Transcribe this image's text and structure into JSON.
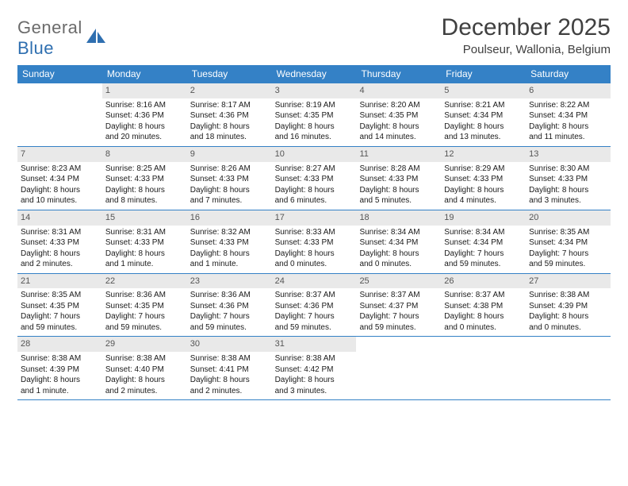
{
  "logo": {
    "text1": "General",
    "text2": "Blue"
  },
  "title": "December 2025",
  "location": "Poulseur, Wallonia, Belgium",
  "colors": {
    "header_bar": "#3481c6",
    "daynum_bg": "#e9e9e9",
    "text": "#1a1a1a",
    "logo_gray": "#6b6b6b",
    "logo_blue": "#2f6fb0"
  },
  "weekdays": [
    "Sunday",
    "Monday",
    "Tuesday",
    "Wednesday",
    "Thursday",
    "Friday",
    "Saturday"
  ],
  "weeks": [
    [
      null,
      {
        "n": "1",
        "sr": "Sunrise: 8:16 AM",
        "ss": "Sunset: 4:36 PM",
        "d1": "Daylight: 8 hours",
        "d2": "and 20 minutes."
      },
      {
        "n": "2",
        "sr": "Sunrise: 8:17 AM",
        "ss": "Sunset: 4:36 PM",
        "d1": "Daylight: 8 hours",
        "d2": "and 18 minutes."
      },
      {
        "n": "3",
        "sr": "Sunrise: 8:19 AM",
        "ss": "Sunset: 4:35 PM",
        "d1": "Daylight: 8 hours",
        "d2": "and 16 minutes."
      },
      {
        "n": "4",
        "sr": "Sunrise: 8:20 AM",
        "ss": "Sunset: 4:35 PM",
        "d1": "Daylight: 8 hours",
        "d2": "and 14 minutes."
      },
      {
        "n": "5",
        "sr": "Sunrise: 8:21 AM",
        "ss": "Sunset: 4:34 PM",
        "d1": "Daylight: 8 hours",
        "d2": "and 13 minutes."
      },
      {
        "n": "6",
        "sr": "Sunrise: 8:22 AM",
        "ss": "Sunset: 4:34 PM",
        "d1": "Daylight: 8 hours",
        "d2": "and 11 minutes."
      }
    ],
    [
      {
        "n": "7",
        "sr": "Sunrise: 8:23 AM",
        "ss": "Sunset: 4:34 PM",
        "d1": "Daylight: 8 hours",
        "d2": "and 10 minutes."
      },
      {
        "n": "8",
        "sr": "Sunrise: 8:25 AM",
        "ss": "Sunset: 4:33 PM",
        "d1": "Daylight: 8 hours",
        "d2": "and 8 minutes."
      },
      {
        "n": "9",
        "sr": "Sunrise: 8:26 AM",
        "ss": "Sunset: 4:33 PM",
        "d1": "Daylight: 8 hours",
        "d2": "and 7 minutes."
      },
      {
        "n": "10",
        "sr": "Sunrise: 8:27 AM",
        "ss": "Sunset: 4:33 PM",
        "d1": "Daylight: 8 hours",
        "d2": "and 6 minutes."
      },
      {
        "n": "11",
        "sr": "Sunrise: 8:28 AM",
        "ss": "Sunset: 4:33 PM",
        "d1": "Daylight: 8 hours",
        "d2": "and 5 minutes."
      },
      {
        "n": "12",
        "sr": "Sunrise: 8:29 AM",
        "ss": "Sunset: 4:33 PM",
        "d1": "Daylight: 8 hours",
        "d2": "and 4 minutes."
      },
      {
        "n": "13",
        "sr": "Sunrise: 8:30 AM",
        "ss": "Sunset: 4:33 PM",
        "d1": "Daylight: 8 hours",
        "d2": "and 3 minutes."
      }
    ],
    [
      {
        "n": "14",
        "sr": "Sunrise: 8:31 AM",
        "ss": "Sunset: 4:33 PM",
        "d1": "Daylight: 8 hours",
        "d2": "and 2 minutes."
      },
      {
        "n": "15",
        "sr": "Sunrise: 8:31 AM",
        "ss": "Sunset: 4:33 PM",
        "d1": "Daylight: 8 hours",
        "d2": "and 1 minute."
      },
      {
        "n": "16",
        "sr": "Sunrise: 8:32 AM",
        "ss": "Sunset: 4:33 PM",
        "d1": "Daylight: 8 hours",
        "d2": "and 1 minute."
      },
      {
        "n": "17",
        "sr": "Sunrise: 8:33 AM",
        "ss": "Sunset: 4:33 PM",
        "d1": "Daylight: 8 hours",
        "d2": "and 0 minutes."
      },
      {
        "n": "18",
        "sr": "Sunrise: 8:34 AM",
        "ss": "Sunset: 4:34 PM",
        "d1": "Daylight: 8 hours",
        "d2": "and 0 minutes."
      },
      {
        "n": "19",
        "sr": "Sunrise: 8:34 AM",
        "ss": "Sunset: 4:34 PM",
        "d1": "Daylight: 7 hours",
        "d2": "and 59 minutes."
      },
      {
        "n": "20",
        "sr": "Sunrise: 8:35 AM",
        "ss": "Sunset: 4:34 PM",
        "d1": "Daylight: 7 hours",
        "d2": "and 59 minutes."
      }
    ],
    [
      {
        "n": "21",
        "sr": "Sunrise: 8:35 AM",
        "ss": "Sunset: 4:35 PM",
        "d1": "Daylight: 7 hours",
        "d2": "and 59 minutes."
      },
      {
        "n": "22",
        "sr": "Sunrise: 8:36 AM",
        "ss": "Sunset: 4:35 PM",
        "d1": "Daylight: 7 hours",
        "d2": "and 59 minutes."
      },
      {
        "n": "23",
        "sr": "Sunrise: 8:36 AM",
        "ss": "Sunset: 4:36 PM",
        "d1": "Daylight: 7 hours",
        "d2": "and 59 minutes."
      },
      {
        "n": "24",
        "sr": "Sunrise: 8:37 AM",
        "ss": "Sunset: 4:36 PM",
        "d1": "Daylight: 7 hours",
        "d2": "and 59 minutes."
      },
      {
        "n": "25",
        "sr": "Sunrise: 8:37 AM",
        "ss": "Sunset: 4:37 PM",
        "d1": "Daylight: 7 hours",
        "d2": "and 59 minutes."
      },
      {
        "n": "26",
        "sr": "Sunrise: 8:37 AM",
        "ss": "Sunset: 4:38 PM",
        "d1": "Daylight: 8 hours",
        "d2": "and 0 minutes."
      },
      {
        "n": "27",
        "sr": "Sunrise: 8:38 AM",
        "ss": "Sunset: 4:39 PM",
        "d1": "Daylight: 8 hours",
        "d2": "and 0 minutes."
      }
    ],
    [
      {
        "n": "28",
        "sr": "Sunrise: 8:38 AM",
        "ss": "Sunset: 4:39 PM",
        "d1": "Daylight: 8 hours",
        "d2": "and 1 minute."
      },
      {
        "n": "29",
        "sr": "Sunrise: 8:38 AM",
        "ss": "Sunset: 4:40 PM",
        "d1": "Daylight: 8 hours",
        "d2": "and 2 minutes."
      },
      {
        "n": "30",
        "sr": "Sunrise: 8:38 AM",
        "ss": "Sunset: 4:41 PM",
        "d1": "Daylight: 8 hours",
        "d2": "and 2 minutes."
      },
      {
        "n": "31",
        "sr": "Sunrise: 8:38 AM",
        "ss": "Sunset: 4:42 PM",
        "d1": "Daylight: 8 hours",
        "d2": "and 3 minutes."
      },
      null,
      null,
      null
    ]
  ]
}
